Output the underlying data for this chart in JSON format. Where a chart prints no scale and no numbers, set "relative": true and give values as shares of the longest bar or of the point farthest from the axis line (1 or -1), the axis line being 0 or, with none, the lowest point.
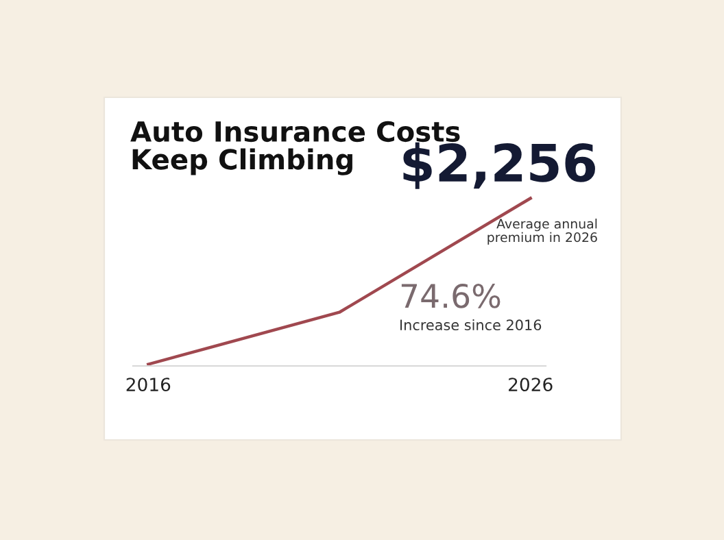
{
  "chart_data": {
    "type": "line",
    "title": "Auto Insurance Costs\nKeep Climbing",
    "relative": true,
    "x": [
      2016,
      2021,
      2026
    ],
    "xlim": [
      2015.6,
      2026.4
    ],
    "xticks": [
      2016,
      2026
    ],
    "series": [
      {
        "color": "#a0484f",
        "values": [
          0.01,
          0.32,
          1
        ]
      }
    ],
    "annotations": [
      "$2,256",
      "Average annual\npremium in 2026",
      "74.6%",
      "Increase since 2016"
    ],
    "grid": false,
    "legend": false,
    "marker": "none",
    "line_style": "solid"
  }
}
